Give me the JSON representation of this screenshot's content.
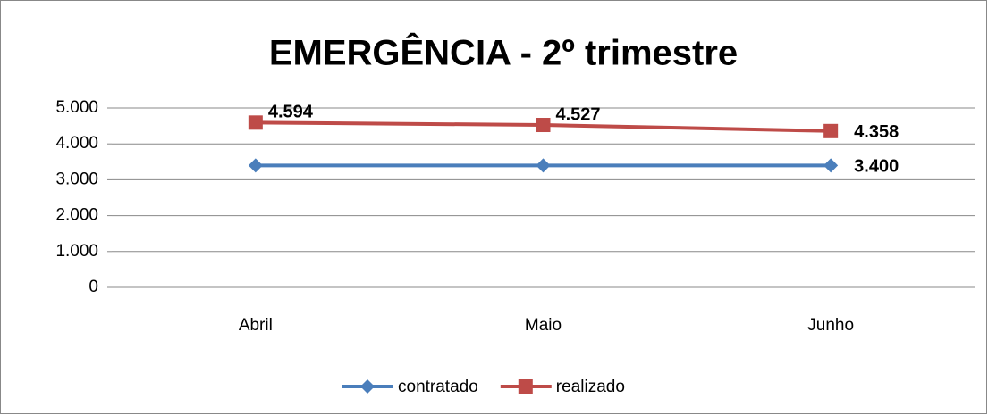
{
  "chart_data": {
    "type": "line",
    "title": "EMERGÊNCIA - 2º trimestre",
    "categories": [
      "Abril",
      "Maio",
      "Junho"
    ],
    "series": [
      {
        "name": "contratado",
        "color": "#4a7ebb",
        "marker": "diamond",
        "values": [
          3400,
          3400,
          3400
        ],
        "value_labels": [
          null,
          null,
          "3.400"
        ]
      },
      {
        "name": "realizado",
        "color": "#be4b48",
        "marker": "square",
        "values": [
          4594,
          4527,
          4358
        ],
        "value_labels": [
          "4.594",
          "4.527",
          "4.358"
        ]
      }
    ],
    "ylim": [
      0,
      5000
    ],
    "yticks": [
      0,
      {
        "value": 1000,
        "label": "1.000"
      },
      {
        "value": 2000,
        "label": "2.000"
      },
      {
        "value": 3000,
        "label": "3.000"
      },
      {
        "value": 4000,
        "label": "4.000"
      },
      {
        "value": 5000,
        "label": "5.000"
      }
    ],
    "grid": true,
    "legend": "bottom"
  }
}
